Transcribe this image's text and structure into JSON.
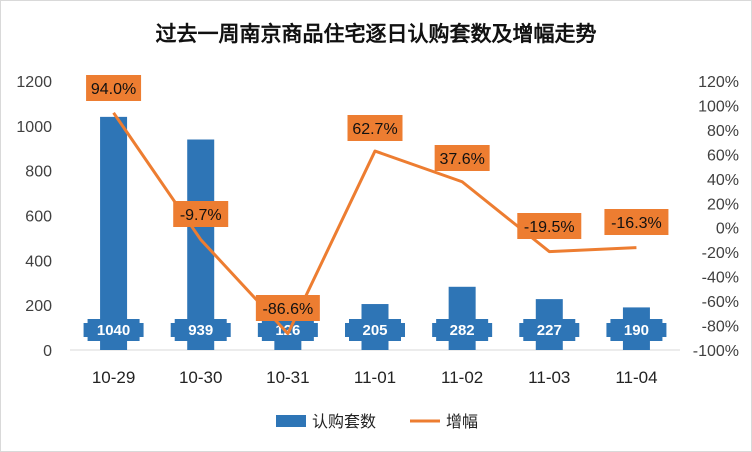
{
  "chart_data": {
    "type": "bar",
    "title": "过去一周南京商品住宅逐日认购套数及增幅走势",
    "categories": [
      "10-29",
      "10-30",
      "10-31",
      "11-01",
      "11-02",
      "11-03",
      "11-04"
    ],
    "series": [
      {
        "name": "认购套数",
        "type": "bar",
        "axis": "left",
        "color": "#2e75b6",
        "values": [
          1040,
          939,
          126,
          205,
          282,
          227,
          190
        ],
        "labels": [
          "1040",
          "939",
          "126",
          "205",
          "282",
          "227",
          "190"
        ]
      },
      {
        "name": "增幅",
        "type": "line",
        "axis": "right",
        "color": "#ed7d31",
        "values": [
          94.0,
          -9.7,
          -86.6,
          62.7,
          37.6,
          -19.5,
          -16.3
        ],
        "labels": [
          "94.0%",
          "-9.7%",
          "-86.6%",
          "62.7%",
          "37.6%",
          "-19.5%",
          "-16.3%"
        ]
      }
    ],
    "ylim": [
      0,
      1200
    ],
    "yticks": [
      "0",
      "200",
      "400",
      "600",
      "800",
      "1000",
      "1200"
    ],
    "y2lim": [
      -100,
      120
    ],
    "y2ticks": [
      "-100%",
      "-80%",
      "-60%",
      "-40%",
      "-20%",
      "0%",
      "20%",
      "40%",
      "60%",
      "80%",
      "100%",
      "120%"
    ],
    "grid": false,
    "legend_position": "bottom"
  }
}
